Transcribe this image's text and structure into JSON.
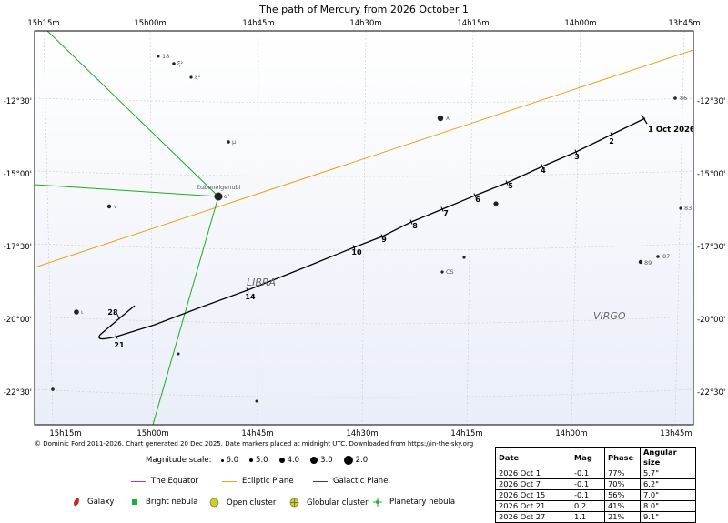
{
  "chart_data": {
    "type": "scatter",
    "title": "The path of Mercury from 2026 October 1",
    "ra_ticks": [
      "15h15m",
      "15h00m",
      "14h45m",
      "14h30m",
      "14h15m",
      "14h00m",
      "13h45m"
    ],
    "dec_ticks": [
      "-12°30'",
      "-15°00'",
      "-17°30'",
      "-20°00'",
      "-22°30'"
    ],
    "start_label": "1 Oct 2026",
    "date_markers": [
      {
        "label": "2"
      },
      {
        "label": "3"
      },
      {
        "label": "4"
      },
      {
        "label": "5"
      },
      {
        "label": "6"
      },
      {
        "label": "7"
      },
      {
        "label": "8"
      },
      {
        "label": "9"
      },
      {
        "label": "10"
      },
      {
        "label": "14"
      },
      {
        "label": "21"
      },
      {
        "label": "28"
      }
    ],
    "lines": {
      "ecliptic": {
        "name": "Ecliptic Plane",
        "color": "#e8a317"
      },
      "equator": {
        "name": "The Equator",
        "color": "#cc3399"
      },
      "galactic": {
        "name": "Galactic Plane",
        "color": "#3333aa"
      },
      "constellation_color": "#22aa22",
      "path_color": "#000000"
    },
    "constellations": [
      "LIBRA",
      "VIRGO"
    ],
    "stars": [
      {
        "name": "18"
      },
      {
        "name": "ξ²"
      },
      {
        "name": "ξ¹"
      },
      {
        "name": "μ"
      },
      {
        "name": "ν"
      },
      {
        "name": "ι"
      },
      {
        "name": "λ"
      },
      {
        "name": "CS"
      },
      {
        "name": "86"
      },
      {
        "name": "83"
      },
      {
        "name": "87"
      },
      {
        "name": "89"
      },
      {
        "name": "α¹"
      },
      {
        "name": "Zubenelgenubi"
      }
    ],
    "magnitude_scale": {
      "label": "Magnitude scale:",
      "values": [
        "6.0",
        "5.0",
        "4.0",
        "3.0",
        "2.0"
      ]
    },
    "object_legend": [
      "Galaxy",
      "Bright nebula",
      "Open cluster",
      "Globular cluster",
      "Planetary nebula"
    ],
    "table": {
      "headers": [
        "Date",
        "Mag",
        "Phase",
        "Angular size"
      ],
      "rows": [
        [
          "2026 Oct 1",
          "-0.1",
          "77%",
          "5.7\""
        ],
        [
          "2026 Oct 7",
          "-0.1",
          "70%",
          "6.2\""
        ],
        [
          "2026 Oct 15",
          "-0.1",
          "56%",
          "7.0\""
        ],
        [
          "2026 Oct 21",
          "0.2",
          "41%",
          "8.0\""
        ],
        [
          "2026 Oct 27",
          "1.1",
          "21%",
          "9.1\""
        ]
      ]
    }
  },
  "copyright": "© Dominic Ford 2011-2026. Chart generated 20 Dec 2025. Date markers placed at midnight UTC. Downloaded from https://in-the-sky.org"
}
